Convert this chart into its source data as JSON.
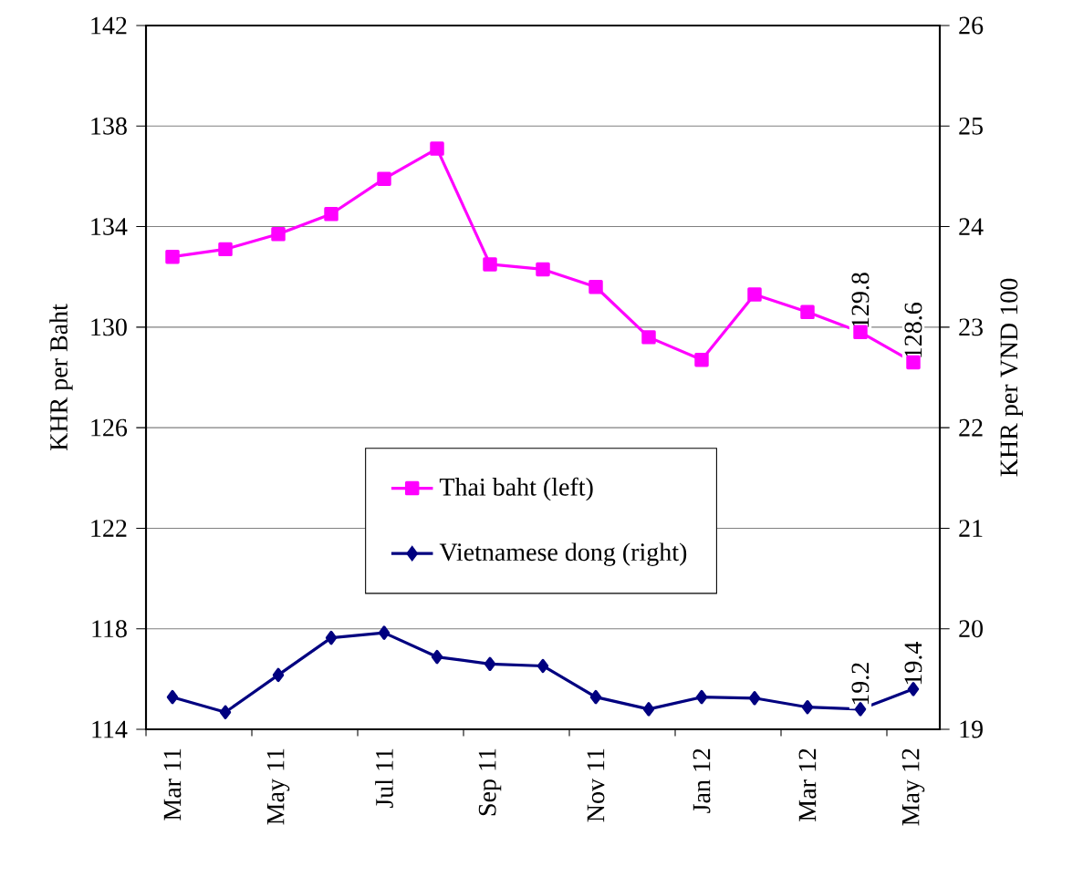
{
  "chart_data": {
    "type": "line",
    "categories": [
      "Mar 11",
      null,
      "May 11",
      null,
      "Jul 11",
      null,
      "Sep 11",
      null,
      "Nov 11",
      null,
      "Jan 12",
      null,
      "Mar 12",
      null,
      "May 12"
    ],
    "ylabel": "KHR per Baht",
    "y2label": "KHR per VND 100",
    "ylim": [
      114,
      142
    ],
    "yticks": [
      114,
      118,
      122,
      126,
      130,
      134,
      138,
      142
    ],
    "y2lim": [
      19,
      26
    ],
    "y2ticks": [
      19,
      20,
      21,
      22,
      23,
      24,
      25,
      26
    ],
    "grid": "y",
    "legend": "center",
    "line_style": "solid",
    "series": [
      {
        "name": "Thai baht (left)",
        "color": "#ff00ff",
        "marker": "square",
        "values": [
          132.8,
          133.1,
          133.7,
          134.5,
          135.9,
          137.1,
          132.5,
          132.3,
          131.6,
          129.6,
          128.7,
          131.3,
          130.6,
          129.8,
          128.6
        ],
        "value_labels": [
          null,
          null,
          null,
          null,
          null,
          null,
          null,
          null,
          null,
          null,
          null,
          null,
          null,
          "129.8",
          "128.6"
        ]
      },
      {
        "name": "Vietnamese dong (right)",
        "color": "#000080",
        "marker": "diamond",
        "axis": "y2",
        "values": [
          19.32,
          19.17,
          19.54,
          19.91,
          19.96,
          19.72,
          19.65,
          19.63,
          19.32,
          19.2,
          19.32,
          19.31,
          19.22,
          19.2,
          19.4
        ],
        "value_labels": [
          null,
          null,
          null,
          null,
          null,
          null,
          null,
          null,
          null,
          null,
          null,
          null,
          null,
          "19.2",
          "19.4"
        ]
      }
    ]
  }
}
